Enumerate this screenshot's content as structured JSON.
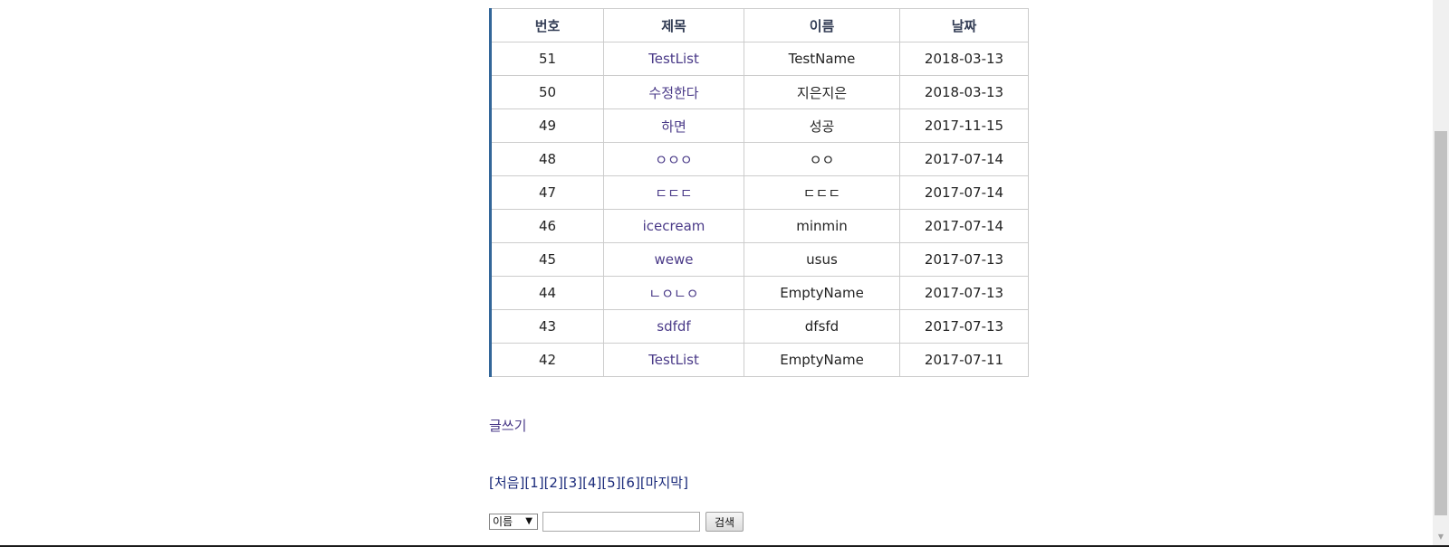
{
  "table": {
    "headers": {
      "no": "번호",
      "title": "제목",
      "name": "이름",
      "date": "날짜"
    },
    "rows": [
      {
        "no": "51",
        "title": "TestList",
        "name": "TestName",
        "date": "2018-03-13"
      },
      {
        "no": "50",
        "title": "수정한다",
        "name": "지은지은",
        "date": "2018-03-13"
      },
      {
        "no": "49",
        "title": "하면",
        "name": "성공",
        "date": "2017-11-15"
      },
      {
        "no": "48",
        "title": "ㅇㅇㅇ",
        "name": "ㅇㅇ",
        "date": "2017-07-14"
      },
      {
        "no": "47",
        "title": "ㄷㄷㄷ",
        "name": "ㄷㄷㄷ",
        "date": "2017-07-14"
      },
      {
        "no": "46",
        "title": "icecream",
        "name": "minmin",
        "date": "2017-07-14"
      },
      {
        "no": "45",
        "title": "wewe",
        "name": "usus",
        "date": "2017-07-13"
      },
      {
        "no": "44",
        "title": "ㄴㅇㄴㅇ",
        "name": "EmptyName",
        "date": "2017-07-13"
      },
      {
        "no": "43",
        "title": "sdfdf",
        "name": "dfsfd",
        "date": "2017-07-13"
      },
      {
        "no": "42",
        "title": "TestList",
        "name": "EmptyName",
        "date": "2017-07-11"
      }
    ]
  },
  "write_link": "글쓰기",
  "pager": {
    "first": "[처음]",
    "pages": [
      "[1]",
      "[2]",
      "[3]",
      "[4]",
      "[5]",
      "[6]"
    ],
    "last": "[마지막]"
  },
  "search": {
    "selected_option": "이름",
    "input_value": "",
    "button_label": "검색"
  },
  "colors": {
    "table_left_border": "#336699",
    "link": "#4a3a88"
  }
}
